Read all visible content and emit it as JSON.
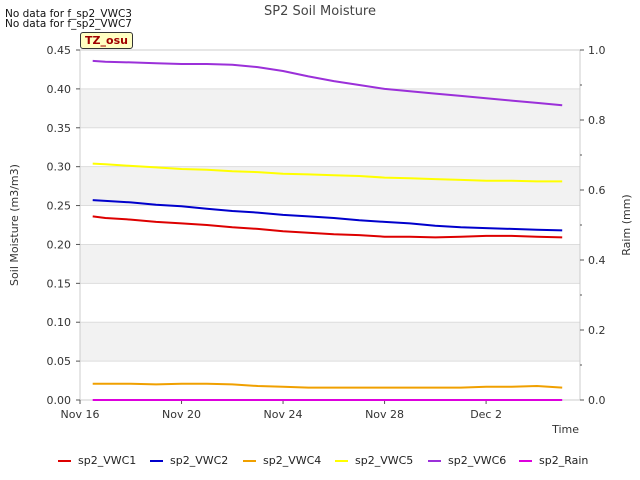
{
  "notes": [
    "No data for f_sp2_VWC3",
    "No data for f_sp2_VWC7"
  ],
  "badge": "TZ_osu",
  "chart_data": {
    "type": "line",
    "title": "SP2 Soil Moisture",
    "xlabel": "Time",
    "ylabel": "Soil Moisture (m3/m3)",
    "y2label": "Raim (mm)",
    "x_ticks": [
      "Nov 16",
      "Nov 20",
      "Nov 24",
      "Nov 28",
      "Dec 2"
    ],
    "y_ticks": [
      "0.00",
      "0.05",
      "0.10",
      "0.15",
      "0.20",
      "0.25",
      "0.30",
      "0.35",
      "0.40",
      "0.45"
    ],
    "y2_ticks": [
      "0.0",
      "0.2",
      "0.4",
      "0.6",
      "0.8",
      "1.0"
    ],
    "ylim": [
      0,
      0.45
    ],
    "y2lim": [
      0,
      1.0
    ],
    "xlim_days": [
      16,
      35.7
    ],
    "grid": true,
    "legend_position": "bottom",
    "series": [
      {
        "name": "sp2_VWC1",
        "color": "#dd0000",
        "axis": "left",
        "x": [
          16.5,
          17,
          18,
          19,
          20,
          21,
          22,
          23,
          24,
          25,
          26,
          27,
          28,
          29,
          30,
          31,
          32,
          33,
          34,
          35
        ],
        "y": [
          0.236,
          0.234,
          0.232,
          0.229,
          0.227,
          0.225,
          0.222,
          0.22,
          0.217,
          0.215,
          0.213,
          0.212,
          0.21,
          0.21,
          0.209,
          0.21,
          0.211,
          0.211,
          0.21,
          0.209
        ]
      },
      {
        "name": "sp2_VWC2",
        "color": "#0000cc",
        "axis": "left",
        "x": [
          16.5,
          17,
          18,
          19,
          20,
          21,
          22,
          23,
          24,
          25,
          26,
          27,
          28,
          29,
          30,
          31,
          32,
          33,
          34,
          35
        ],
        "y": [
          0.257,
          0.256,
          0.254,
          0.251,
          0.249,
          0.246,
          0.243,
          0.241,
          0.238,
          0.236,
          0.234,
          0.231,
          0.229,
          0.227,
          0.224,
          0.222,
          0.221,
          0.22,
          0.219,
          0.218
        ]
      },
      {
        "name": "sp2_VWC4",
        "color": "#f0a000",
        "axis": "left",
        "x": [
          16.5,
          17,
          18,
          19,
          20,
          21,
          22,
          23,
          24,
          25,
          26,
          27,
          28,
          29,
          30,
          31,
          32,
          33,
          34,
          35
        ],
        "y": [
          0.021,
          0.021,
          0.021,
          0.02,
          0.021,
          0.021,
          0.02,
          0.018,
          0.017,
          0.016,
          0.016,
          0.016,
          0.016,
          0.016,
          0.016,
          0.016,
          0.017,
          0.017,
          0.018,
          0.016
        ]
      },
      {
        "name": "sp2_VWC5",
        "color": "#ffff00",
        "axis": "left",
        "x": [
          16.5,
          17,
          18,
          19,
          20,
          21,
          22,
          23,
          24,
          25,
          26,
          27,
          28,
          29,
          30,
          31,
          32,
          33,
          34,
          35
        ],
        "y": [
          0.304,
          0.303,
          0.301,
          0.299,
          0.297,
          0.296,
          0.294,
          0.293,
          0.291,
          0.29,
          0.289,
          0.288,
          0.286,
          0.285,
          0.284,
          0.283,
          0.282,
          0.282,
          0.281,
          0.281
        ]
      },
      {
        "name": "sp2_VWC6",
        "color": "#9b30d9",
        "axis": "left",
        "x": [
          16.5,
          17,
          18,
          19,
          20,
          21,
          22,
          23,
          24,
          25,
          26,
          27,
          28,
          29,
          30,
          31,
          32,
          33,
          34,
          35
        ],
        "y": [
          0.436,
          0.435,
          0.434,
          0.433,
          0.432,
          0.432,
          0.431,
          0.428,
          0.423,
          0.416,
          0.41,
          0.405,
          0.4,
          0.397,
          0.394,
          0.391,
          0.388,
          0.385,
          0.382,
          0.379
        ]
      },
      {
        "name": "sp2_Rain",
        "color": "#dd00dd",
        "axis": "right",
        "x": [
          16.5,
          35
        ],
        "y": [
          0.0,
          0.0
        ]
      }
    ]
  }
}
